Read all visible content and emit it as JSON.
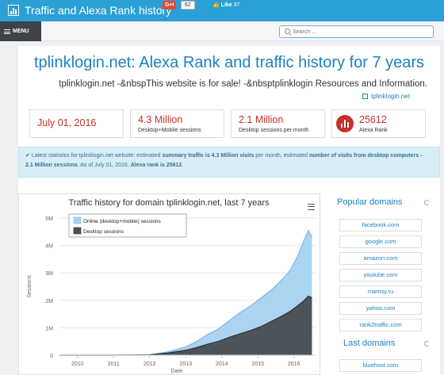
{
  "header": {
    "title": "Traffic and Alexa Rank history",
    "gplus_label": "G+I",
    "gplus_count": "62",
    "fb_like_label": "Like",
    "fb_like_count": "37"
  },
  "menu": {
    "label": "MENU"
  },
  "search": {
    "placeholder": "Search ..."
  },
  "main": {
    "title": "tplinklogin.net: Alexa Rank and traffic history for 7 years",
    "description": "tplinklogin.net -&nbspThis website is for sale! -&nbsptplinklogin Resources and Information.",
    "site_link": "tplinklogin.net"
  },
  "stats": [
    {
      "value": "July 01, 2016",
      "label": ""
    },
    {
      "value": "4.3 Million",
      "label": "Desktop+Mobile sessions"
    },
    {
      "value": "2.1 Million",
      "label": "Desktop sessions per month"
    },
    {
      "value": "25612",
      "label": "Alexa Rank"
    }
  ],
  "alert": {
    "p1": "Latest statistics for tplinklogin.net website: estimated ",
    "b1": "summary traffic is 4.3 Million visits",
    "p2": " per month, estimated ",
    "b2": "number of visits from desktop computers - 2.1 Million sessions",
    "p3": ". As of July 01, 2016, ",
    "b3": "Alexa rank is 25612",
    "p4": "."
  },
  "sidebar": {
    "popular_title": "Popular domains",
    "popular": [
      "facebook.com",
      "google.com",
      "amazon.com",
      "youtube.com",
      "mamsy.ru",
      "yahoo.com",
      "rank2traffic.com"
    ],
    "last_title": "Last domains",
    "last": [
      "bluehost.com"
    ]
  },
  "colors": {
    "accent": "#1a82c4",
    "topbar": "#2aa0d4",
    "danger": "#c9302c",
    "online_fill": "#aad4f1",
    "desktop_fill": "#4c5359"
  },
  "chart_data": {
    "type": "area",
    "title": "Traffic history for domain tplinklogin.net, last 7 years",
    "xlabel": "Date",
    "ylabel": "Sessions",
    "x_ticks": [
      "2010",
      "2011",
      "2012",
      "2013",
      "2014",
      "2015",
      "2016"
    ],
    "y_ticks": [
      "0",
      "1M",
      "2M",
      "3M",
      "4M",
      "5M"
    ],
    "ylim": [
      0,
      5000000
    ],
    "xlim": [
      2009.5,
      2016.6
    ],
    "legend_position": "top-left",
    "series": [
      {
        "name": "Online (desktop+mobile) sessions",
        "x": [
          2009.5,
          2011.0,
          2012.0,
          2012.5,
          2013.0,
          2013.3,
          2013.6,
          2013.9,
          2014.2,
          2014.5,
          2014.8,
          2015.1,
          2015.4,
          2015.7,
          2015.9,
          2016.1,
          2016.25,
          2016.4,
          2016.5
        ],
        "values": [
          0,
          0,
          20000,
          120000,
          300000,
          500000,
          750000,
          950000,
          1250000,
          1550000,
          1800000,
          2100000,
          2400000,
          2800000,
          3100000,
          3600000,
          4100000,
          4550000,
          4300000
        ]
      },
      {
        "name": "Desktop sessions",
        "x": [
          2009.5,
          2011.0,
          2012.0,
          2012.5,
          2013.0,
          2013.3,
          2013.6,
          2013.9,
          2014.2,
          2014.5,
          2014.8,
          2015.1,
          2015.4,
          2015.7,
          2015.9,
          2016.1,
          2016.25,
          2016.4,
          2016.5
        ],
        "values": [
          0,
          0,
          10000,
          80000,
          180000,
          280000,
          400000,
          500000,
          650000,
          780000,
          900000,
          1050000,
          1250000,
          1450000,
          1600000,
          1800000,
          1950000,
          2150000,
          2100000
        ]
      }
    ]
  }
}
